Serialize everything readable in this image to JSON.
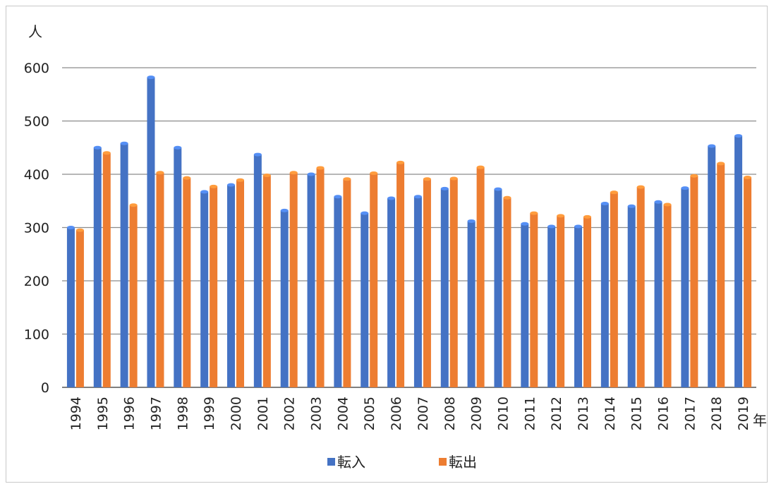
{
  "chart_data": {
    "type": "bar",
    "ylabel": "人",
    "xlabel": "年",
    "ylim": [
      0,
      600
    ],
    "yticks": [
      0,
      100,
      200,
      300,
      400,
      500,
      600
    ],
    "grid": true,
    "legend_position": "bottom",
    "categories": [
      "1994",
      "1995",
      "1996",
      "1997",
      "1998",
      "1999",
      "2000",
      "2001",
      "2002",
      "2003",
      "2004",
      "2005",
      "2006",
      "2007",
      "2008",
      "2009",
      "2010",
      "2011",
      "2012",
      "2013",
      "2014",
      "2015",
      "2016",
      "2017",
      "2018",
      "2019"
    ],
    "series": [
      {
        "name": "転入",
        "color": "#4472C4",
        "values": [
          300,
          450,
          458,
          582,
          450,
          367,
          380,
          437,
          332,
          400,
          358,
          327,
          355,
          358,
          373,
          312,
          372,
          307,
          302,
          302,
          345,
          340,
          348,
          374,
          453,
          472
        ]
      },
      {
        "name": "転出",
        "color": "#ED7D31",
        "values": [
          295,
          440,
          342,
          403,
          393,
          377,
          389,
          398,
          403,
          412,
          391,
          402,
          422,
          391,
          392,
          413,
          356,
          327,
          322,
          320,
          366,
          376,
          343,
          397,
          420,
          394
        ]
      }
    ]
  }
}
